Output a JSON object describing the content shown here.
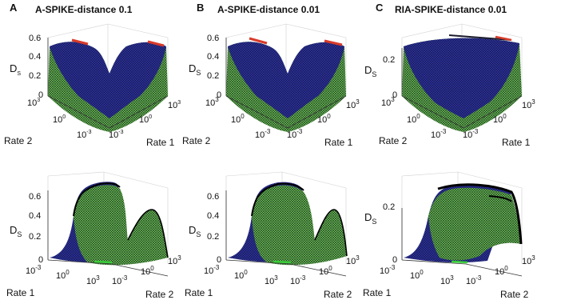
{
  "chart_data": [
    {
      "type": "surface",
      "panel": "A",
      "title": "A-SPIKE-distance 0.1",
      "zlabel": "D",
      "zlabel_sub": "S",
      "zticks": [
        "0",
        "0.2",
        "0.4",
        "0.6"
      ],
      "zlim": [
        0,
        0.6
      ],
      "xlabel": "Rate 1",
      "ylabel": "Rate 2",
      "xticks": [
        "10-3",
        "100",
        "103"
      ],
      "view": "top"
    },
    {
      "type": "surface",
      "panel": "B",
      "title": "A-SPIKE-distance 0.01",
      "zlabel": "D",
      "zlabel_sub": "S",
      "zticks": [
        "0",
        "0.2",
        "0.4",
        "0.6"
      ],
      "zlim": [
        0,
        0.6
      ],
      "xlabel": "Rate 1",
      "ylabel": "Rate 2",
      "view": "top"
    },
    {
      "type": "surface",
      "panel": "C",
      "title": "RIA-SPIKE-distance 0.01",
      "zlabel": "D",
      "zlabel_sub": "S",
      "zticks": [
        "0",
        "0.2"
      ],
      "zlim": [
        0,
        0.3
      ],
      "xlabel": "Rate 1",
      "ylabel": "Rate 2",
      "view": "top"
    },
    {
      "type": "surface",
      "panel": "A-bottom",
      "zlabel": "D",
      "zlabel_sub": "S",
      "zticks": [
        "0",
        "0.2",
        "0.4",
        "0.6"
      ],
      "zlim": [
        0,
        0.6
      ],
      "xlabel": "Rate 1",
      "ylabel": "Rate 2",
      "view": "side"
    },
    {
      "type": "surface",
      "panel": "B-bottom",
      "zlabel": "D",
      "zlabel_sub": "S",
      "zticks": [
        "0",
        "0.2",
        "0.4",
        "0.6"
      ],
      "zlim": [
        0,
        0.6
      ],
      "xlabel": "Rate 1",
      "ylabel": "Rate 2",
      "view": "side"
    },
    {
      "type": "surface",
      "panel": "C-bottom",
      "zlabel": "D",
      "zlabel_sub": "S",
      "zticks": [
        "0",
        "0.2"
      ],
      "zlim": [
        0,
        0.3
      ],
      "xlabel": "Rate 1",
      "ylabel": "Rate 2",
      "view": "side"
    }
  ],
  "tick_base": "10",
  "tick_exponents": [
    "3",
    "0",
    "-3"
  ],
  "colors": {
    "surface_blue": "#2b2f8f",
    "surface_green": "#6fbf5a",
    "mesh_black": "#111111",
    "peak_red": "#d83b2b",
    "floor_green": "#39d039"
  }
}
